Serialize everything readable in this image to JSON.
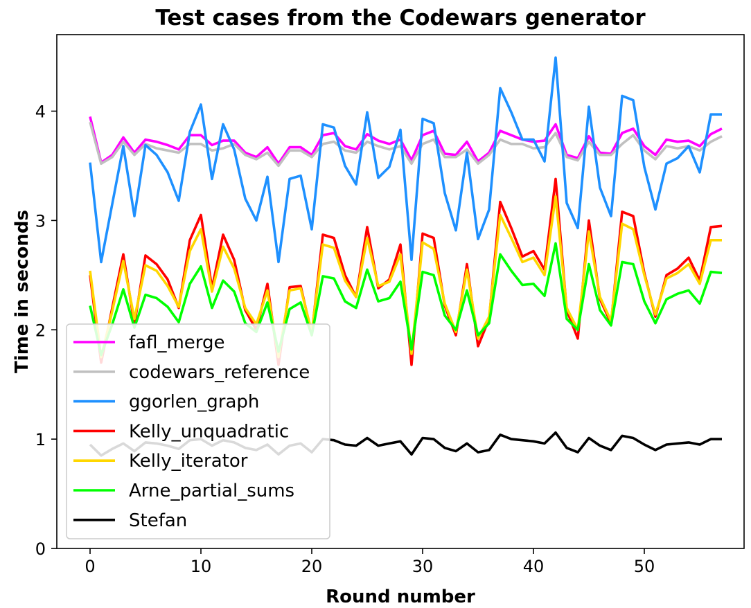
{
  "chart_data": {
    "type": "line",
    "title": "Test cases from the Codewars generator",
    "xlabel": "Round number",
    "ylabel": "Time in seconds",
    "xlim": [
      -3,
      59
    ],
    "ylim": [
      0,
      4.7
    ],
    "xticks": [
      0,
      10,
      20,
      30,
      40,
      50
    ],
    "yticks": [
      0,
      1,
      2,
      3,
      4
    ],
    "grid": false,
    "legend_position": "lower-left",
    "x": [
      0,
      1,
      2,
      3,
      4,
      5,
      6,
      7,
      8,
      9,
      10,
      11,
      12,
      13,
      14,
      15,
      16,
      17,
      18,
      19,
      20,
      21,
      22,
      23,
      24,
      25,
      26,
      27,
      28,
      29,
      30,
      31,
      32,
      33,
      34,
      35,
      36,
      37,
      38,
      39,
      40,
      41,
      42,
      43,
      44,
      45,
      46,
      47,
      48,
      49,
      50,
      51,
      52,
      53,
      54,
      55,
      56,
      57
    ],
    "series": [
      {
        "name": "fafl_merge",
        "color": "#ff00ff",
        "values": [
          3.95,
          3.53,
          3.6,
          3.76,
          3.62,
          3.74,
          3.72,
          3.69,
          3.65,
          3.78,
          3.78,
          3.69,
          3.73,
          3.73,
          3.62,
          3.58,
          3.67,
          3.52,
          3.67,
          3.67,
          3.6,
          3.78,
          3.8,
          3.68,
          3.65,
          3.79,
          3.73,
          3.7,
          3.74,
          3.55,
          3.78,
          3.82,
          3.61,
          3.6,
          3.72,
          3.54,
          3.62,
          3.82,
          3.78,
          3.74,
          3.72,
          3.73,
          3.88,
          3.6,
          3.57,
          3.77,
          3.62,
          3.61,
          3.8,
          3.84,
          3.68,
          3.6,
          3.74,
          3.72,
          3.73,
          3.68,
          3.79,
          3.84
        ]
      },
      {
        "name": "codewars_reference",
        "color": "#c0c0c0",
        "values": [
          3.9,
          3.52,
          3.58,
          3.72,
          3.6,
          3.7,
          3.66,
          3.64,
          3.62,
          3.7,
          3.7,
          3.64,
          3.66,
          3.7,
          3.6,
          3.56,
          3.62,
          3.5,
          3.64,
          3.64,
          3.58,
          3.7,
          3.72,
          3.64,
          3.62,
          3.72,
          3.68,
          3.65,
          3.68,
          3.52,
          3.7,
          3.74,
          3.58,
          3.58,
          3.65,
          3.52,
          3.6,
          3.74,
          3.7,
          3.7,
          3.66,
          3.67,
          3.8,
          3.58,
          3.55,
          3.72,
          3.6,
          3.6,
          3.7,
          3.78,
          3.64,
          3.56,
          3.68,
          3.66,
          3.68,
          3.64,
          3.72,
          3.77
        ]
      },
      {
        "name": "ggorlen_graph",
        "color": "#1e90ff",
        "values": [
          3.53,
          2.62,
          3.15,
          3.68,
          3.04,
          3.69,
          3.6,
          3.44,
          3.18,
          3.81,
          4.06,
          3.38,
          3.88,
          3.65,
          3.2,
          3.0,
          3.4,
          2.62,
          3.38,
          3.41,
          2.92,
          3.88,
          3.85,
          3.5,
          3.33,
          3.99,
          3.39,
          3.49,
          3.83,
          2.64,
          3.93,
          3.89,
          3.25,
          2.91,
          3.62,
          2.83,
          3.1,
          4.21,
          3.99,
          3.74,
          3.74,
          3.54,
          4.49,
          3.16,
          2.93,
          4.04,
          3.3,
          3.04,
          4.14,
          4.1,
          3.49,
          3.1,
          3.52,
          3.57,
          3.68,
          3.44,
          3.97,
          3.97
        ]
      },
      {
        "name": "Kelly_unquadratic",
        "color": "#ff0000",
        "values": [
          2.5,
          1.7,
          2.2,
          2.69,
          2.05,
          2.68,
          2.6,
          2.46,
          2.2,
          2.82,
          3.05,
          2.38,
          2.87,
          2.64,
          2.18,
          2.0,
          2.42,
          1.68,
          2.39,
          2.4,
          1.96,
          2.87,
          2.84,
          2.5,
          2.3,
          2.94,
          2.38,
          2.46,
          2.78,
          1.68,
          2.88,
          2.84,
          2.22,
          1.95,
          2.6,
          1.85,
          2.1,
          3.17,
          2.93,
          2.67,
          2.72,
          2.55,
          3.38,
          2.18,
          1.92,
          3.0,
          2.28,
          2.06,
          3.08,
          3.04,
          2.52,
          2.12,
          2.5,
          2.56,
          2.66,
          2.45,
          2.94,
          2.95
        ]
      },
      {
        "name": "Kelly_iterator",
        "color": "#ffd700",
        "values": [
          2.54,
          1.75,
          2.17,
          2.63,
          2.1,
          2.59,
          2.54,
          2.4,
          2.21,
          2.72,
          2.92,
          2.35,
          2.76,
          2.56,
          2.2,
          2.05,
          2.36,
          1.75,
          2.36,
          2.38,
          1.98,
          2.78,
          2.75,
          2.45,
          2.3,
          2.84,
          2.4,
          2.44,
          2.69,
          1.78,
          2.8,
          2.74,
          2.24,
          1.98,
          2.55,
          1.92,
          2.12,
          3.05,
          2.84,
          2.62,
          2.66,
          2.5,
          3.22,
          2.2,
          2.0,
          2.9,
          2.3,
          2.08,
          2.97,
          2.92,
          2.5,
          2.14,
          2.47,
          2.52,
          2.6,
          2.42,
          2.82,
          2.82
        ]
      },
      {
        "name": "Arne_partial_sums",
        "color": "#00ff00",
        "values": [
          2.22,
          1.77,
          2.05,
          2.37,
          2.02,
          2.32,
          2.29,
          2.21,
          2.07,
          2.42,
          2.58,
          2.2,
          2.45,
          2.35,
          2.06,
          1.98,
          2.25,
          1.8,
          2.19,
          2.25,
          1.95,
          2.49,
          2.47,
          2.26,
          2.2,
          2.55,
          2.26,
          2.29,
          2.44,
          1.82,
          2.53,
          2.5,
          2.13,
          2.0,
          2.36,
          1.95,
          2.06,
          2.69,
          2.54,
          2.41,
          2.42,
          2.31,
          2.79,
          2.1,
          2.0,
          2.6,
          2.18,
          2.04,
          2.62,
          2.6,
          2.26,
          2.06,
          2.28,
          2.33,
          2.36,
          2.24,
          2.53,
          2.52
        ]
      },
      {
        "name": "Stefan",
        "color": "#000000",
        "values": [
          0.95,
          0.85,
          0.91,
          0.96,
          0.89,
          0.97,
          0.96,
          0.94,
          0.91,
          0.99,
          1.0,
          0.94,
          0.99,
          0.97,
          0.92,
          0.9,
          0.95,
          0.86,
          0.94,
          0.96,
          0.88,
          1.0,
          0.99,
          0.95,
          0.94,
          1.01,
          0.94,
          0.96,
          0.98,
          0.86,
          1.01,
          1.0,
          0.92,
          0.89,
          0.96,
          0.88,
          0.9,
          1.04,
          1.0,
          0.99,
          0.98,
          0.96,
          1.06,
          0.92,
          0.88,
          1.01,
          0.94,
          0.9,
          1.03,
          1.01,
          0.95,
          0.9,
          0.95,
          0.96,
          0.97,
          0.95,
          1.0,
          1.0
        ]
      }
    ]
  }
}
